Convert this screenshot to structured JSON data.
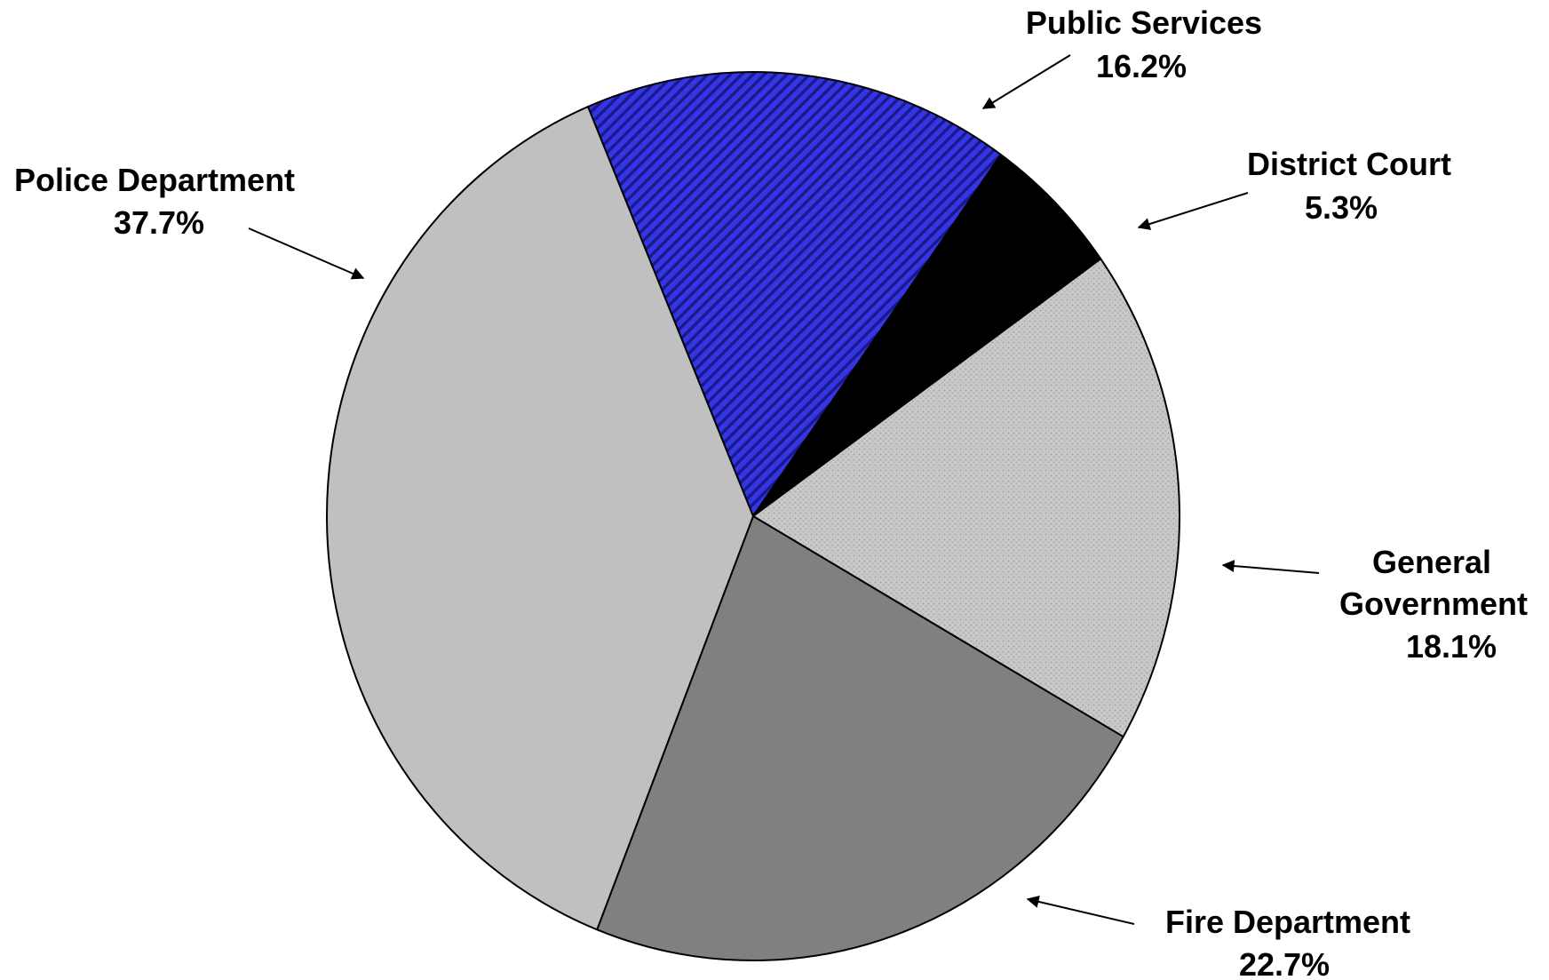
{
  "chart_data": {
    "type": "pie",
    "title": "",
    "start_slice": "Public Services",
    "direction": "clockwise",
    "slices": [
      {
        "name": "Public Services",
        "value": 16.2,
        "label": "16.2%",
        "fill": "#2a2ad6",
        "pattern": "diagonal-stripes"
      },
      {
        "name": "District Court",
        "value": 5.3,
        "label": "5.3%",
        "fill": "#000000",
        "pattern": "solid"
      },
      {
        "name": "General Government",
        "value": 18.1,
        "label": "18.1%",
        "fill": "#c6c6c6",
        "pattern": "dotted"
      },
      {
        "name": "Fire Department",
        "value": 22.7,
        "label": "22.7%",
        "fill": "#808080",
        "pattern": "solid"
      },
      {
        "name": "Police Department",
        "value": 37.7,
        "label": "37.7%",
        "fill": "#c0c0c0",
        "pattern": "solid"
      }
    ]
  },
  "labels": {
    "public_services": {
      "line1": "Public Services",
      "line2": "16.2%"
    },
    "district_court": {
      "line1": "District Court",
      "line2": "5.3%"
    },
    "general_government": {
      "line1": "General",
      "line2": "Government",
      "line3": "18.1%"
    },
    "fire_department": {
      "line1": "Fire Department",
      "line2": "22.7%"
    },
    "police_department": {
      "line1": "Police Department",
      "line2": "37.7%"
    }
  }
}
